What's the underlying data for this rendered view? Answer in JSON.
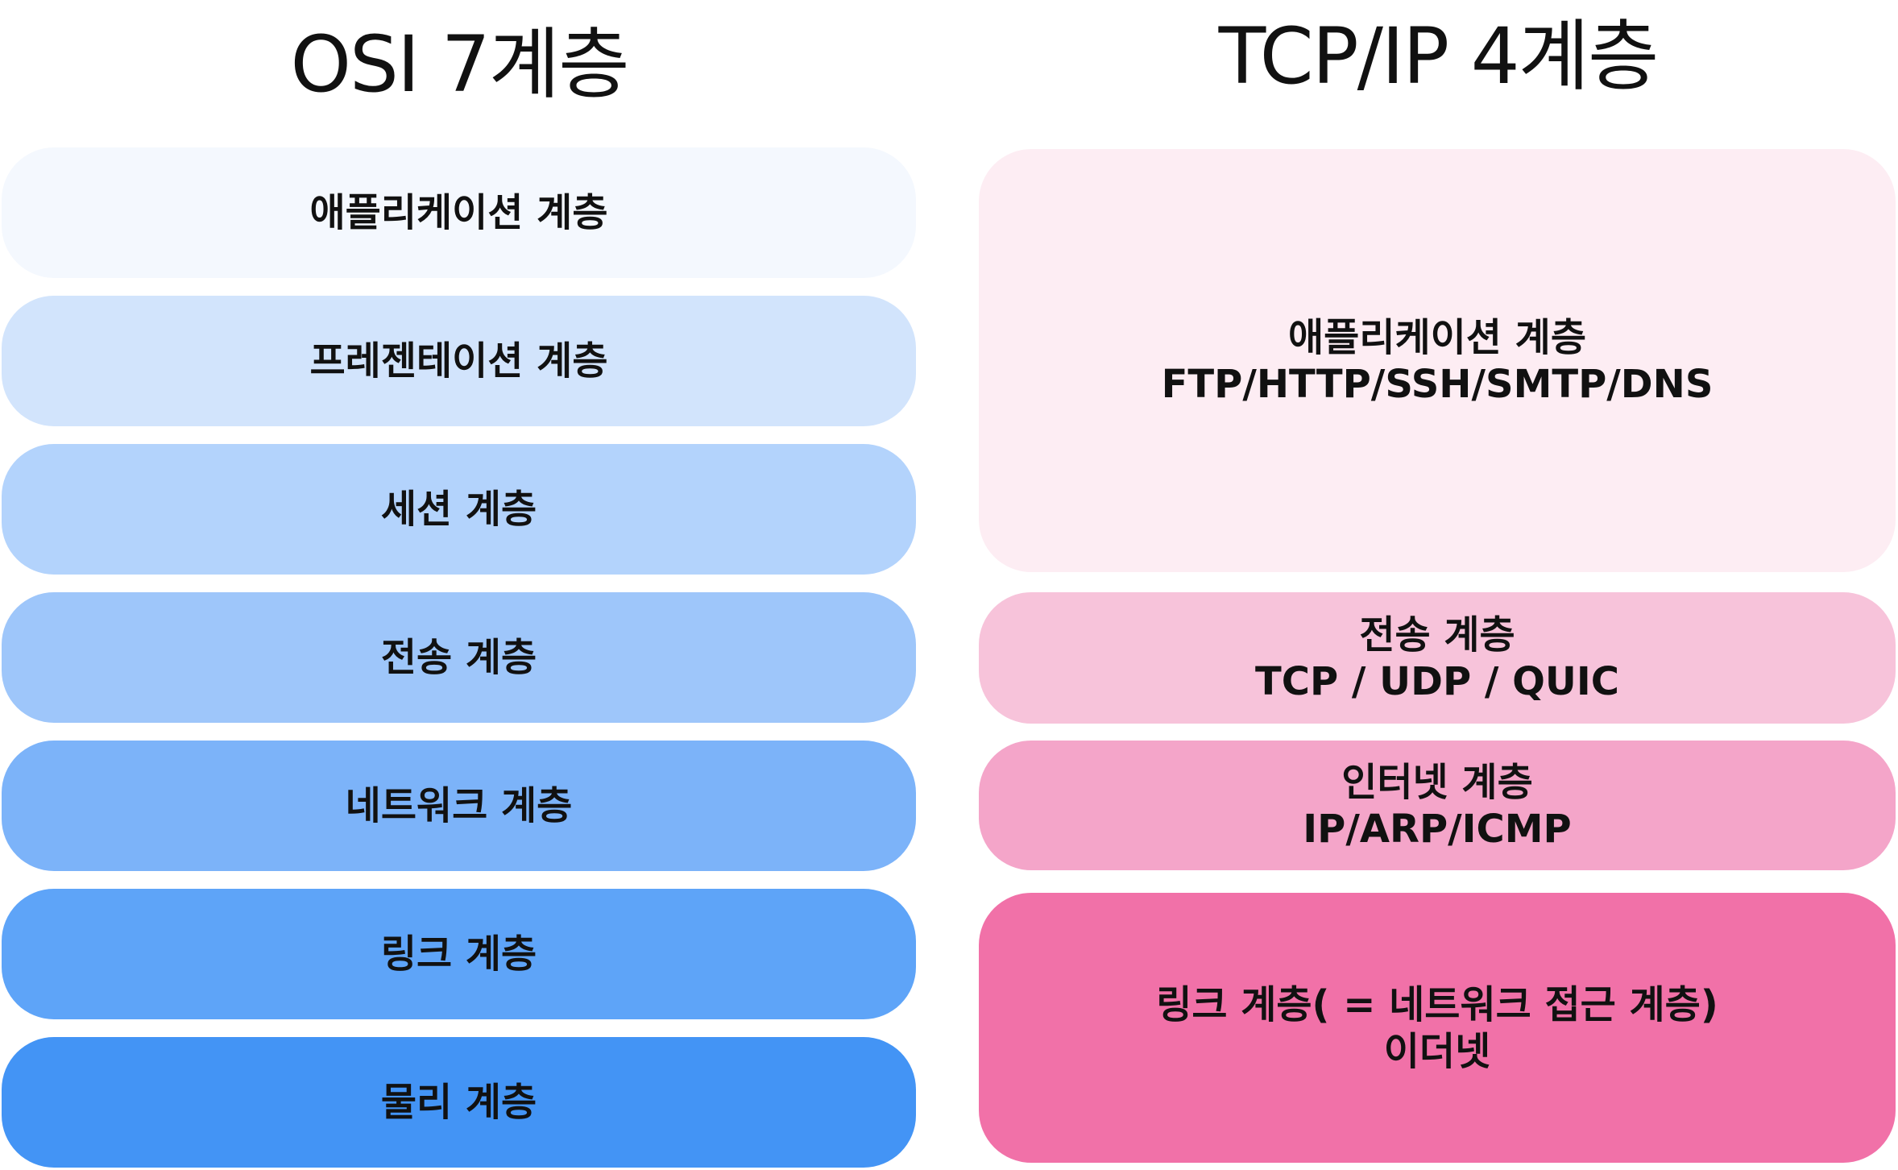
{
  "osi": {
    "title": "OSI 7계층",
    "layers": [
      {
        "name": "애플리케이션 계층",
        "color": "#F4F8FE"
      },
      {
        "name": "프레젠테이션 계층",
        "color": "#D2E4FC"
      },
      {
        "name": "세션 계층",
        "color": "#B3D3FC"
      },
      {
        "name": "전송 계층",
        "color": "#9EC6FA"
      },
      {
        "name": "네트워크 계층",
        "color": "#7CB3F9"
      },
      {
        "name": "링크 계층",
        "color": "#5EA4F8"
      },
      {
        "name": "물리 계층",
        "color": "#4394F5"
      }
    ]
  },
  "tcpip": {
    "title": "TCP/IP 4계층",
    "layers": [
      {
        "name": "애플리케이션 계층",
        "protocols": "FTP/HTTP/SSH/SMTP/DNS",
        "color": "#FDEDF3"
      },
      {
        "name": "전송 계층",
        "protocols": "TCP / UDP / QUIC",
        "color": "#F7C3DA"
      },
      {
        "name": "인터넷 계층",
        "protocols": "IP/ARP/ICMP",
        "color": "#F4A5C9"
      },
      {
        "name": "링크 계층( = 네트워크 접근 계층)",
        "protocols": "이더넷",
        "color": "#F171A8"
      }
    ]
  }
}
